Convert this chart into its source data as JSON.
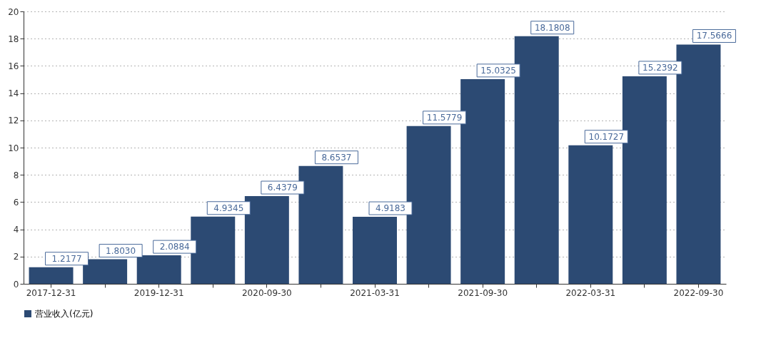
{
  "chart_data": {
    "type": "bar",
    "categories": [
      "2017-12-31",
      null,
      "2019-12-31",
      null,
      "2020-09-30",
      null,
      "2021-03-31",
      null,
      "2021-09-30",
      null,
      "2022-03-31",
      null,
      "2022-09-30"
    ],
    "series": [
      {
        "name": "营业收入(亿元)",
        "color": "#2c4a73",
        "values": [
          1.2177,
          1.803,
          2.0884,
          4.9345,
          6.4379,
          8.6537,
          4.9183,
          11.5779,
          15.0325,
          18.1808,
          10.1727,
          15.2392,
          17.5666
        ],
        "value_labels": [
          "1.2177",
          "1.8030",
          "2.0884",
          "4.9345",
          "6.4379",
          "8.6537",
          "4.9183",
          "11.5779",
          "15.0325",
          "18.1808",
          "10.1727",
          "15.2392",
          "17.5666"
        ]
      }
    ],
    "ylim": [
      0,
      20
    ],
    "yticks": [
      0,
      2,
      4,
      6,
      8,
      10,
      12,
      14,
      16,
      18,
      20
    ],
    "grid": "y",
    "legend": "bottom"
  }
}
